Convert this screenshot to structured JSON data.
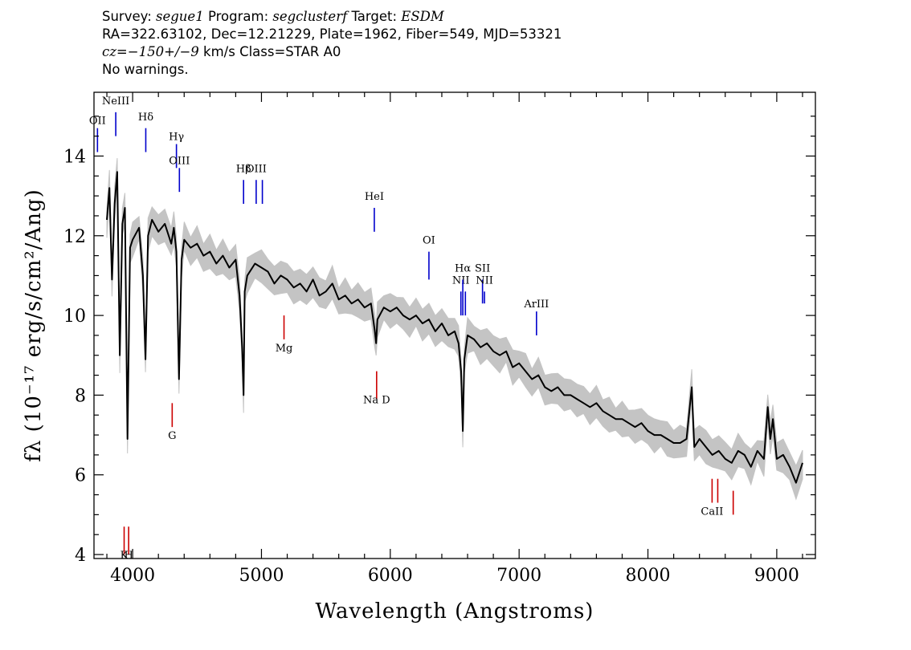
{
  "header": {
    "line1": {
      "survey_label": "Survey:",
      "survey": "segue1",
      "program_label": "Program:",
      "program": "segclusterf",
      "target_label": "Target:",
      "target": "ESDM"
    },
    "line2": "RA=322.63102, Dec=12.21229, Plate=1962, Fiber=549, MJD=53321",
    "line3": {
      "cz": "cz=−150+/−9",
      "rest": " km/s Class=STAR A0"
    },
    "line4": "No warnings."
  },
  "colors": {
    "spectrum": "#000000",
    "error_band": "#c4c4c4",
    "emission_line": "#0000cc",
    "absorption_line": "#cc0000"
  },
  "chart_data": {
    "type": "line",
    "title": "",
    "xlabel": "Wavelength (Angstroms)",
    "ylabel": "fλ (10⁻¹⁷ erg/s/cm²/Ang)",
    "xlim": [
      3700,
      9300
    ],
    "ylim": [
      3.9,
      15.6
    ],
    "x_ticks": [
      4000,
      5000,
      6000,
      7000,
      8000,
      9000
    ],
    "y_ticks": [
      4,
      6,
      8,
      10,
      12,
      14
    ],
    "grid": false,
    "series": [
      {
        "role": "flux",
        "x": [
          3800,
          3820,
          3840,
          3860,
          3880,
          3900,
          3920,
          3940,
          3960,
          3980,
          4000,
          4050,
          4080,
          4100,
          4120,
          4150,
          4200,
          4250,
          4300,
          4320,
          4340,
          4360,
          4380,
          4400,
          4450,
          4500,
          4550,
          4600,
          4650,
          4700,
          4750,
          4800,
          4830,
          4850,
          4861,
          4870,
          4890,
          4950,
          5000,
          5050,
          5100,
          5150,
          5200,
          5250,
          5300,
          5350,
          5400,
          5450,
          5500,
          5550,
          5600,
          5650,
          5700,
          5750,
          5800,
          5850,
          5880,
          5890,
          5900,
          5950,
          6000,
          6050,
          6100,
          6150,
          6200,
          6250,
          6300,
          6350,
          6400,
          6450,
          6500,
          6530,
          6550,
          6563,
          6575,
          6600,
          6650,
          6700,
          6750,
          6800,
          6850,
          6900,
          6950,
          7000,
          7050,
          7100,
          7150,
          7200,
          7250,
          7300,
          7350,
          7400,
          7450,
          7500,
          7550,
          7600,
          7650,
          7700,
          7750,
          7800,
          7850,
          7900,
          7950,
          8000,
          8050,
          8100,
          8150,
          8200,
          8250,
          8300,
          8340,
          8350,
          8360,
          8400,
          8450,
          8500,
          8550,
          8600,
          8650,
          8700,
          8750,
          8800,
          8850,
          8900,
          8930,
          8950,
          8970,
          9000,
          9050,
          9100,
          9150,
          9200
        ],
        "y": [
          12.4,
          13.2,
          10.9,
          12.8,
          13.6,
          9.0,
          12.3,
          12.7,
          6.9,
          11.7,
          11.9,
          12.2,
          11.0,
          8.9,
          12.0,
          12.4,
          12.1,
          12.3,
          11.8,
          12.2,
          11.6,
          8.4,
          11.4,
          11.9,
          11.7,
          11.8,
          11.5,
          11.6,
          11.3,
          11.5,
          11.2,
          11.4,
          10.5,
          9.2,
          8.0,
          10.6,
          11.0,
          11.3,
          11.2,
          11.1,
          10.8,
          11.0,
          10.9,
          10.7,
          10.8,
          10.6,
          10.9,
          10.5,
          10.6,
          10.8,
          10.4,
          10.5,
          10.3,
          10.4,
          10.2,
          10.3,
          9.6,
          9.3,
          9.9,
          10.2,
          10.1,
          10.2,
          10.0,
          9.9,
          10.0,
          9.8,
          9.9,
          9.6,
          9.8,
          9.5,
          9.6,
          9.3,
          8.6,
          7.1,
          8.9,
          9.5,
          9.4,
          9.2,
          9.3,
          9.1,
          9.0,
          9.1,
          8.7,
          8.8,
          8.6,
          8.4,
          8.5,
          8.2,
          8.1,
          8.2,
          8.0,
          8.0,
          7.9,
          7.8,
          7.7,
          7.8,
          7.6,
          7.5,
          7.4,
          7.4,
          7.3,
          7.2,
          7.3,
          7.1,
          7.0,
          7.0,
          6.9,
          6.8,
          6.8,
          6.9,
          8.2,
          7.4,
          6.7,
          6.9,
          6.7,
          6.5,
          6.6,
          6.4,
          6.3,
          6.6,
          6.5,
          6.2,
          6.6,
          6.4,
          7.7,
          6.9,
          7.4,
          6.4,
          6.5,
          6.2,
          5.8,
          6.3
        ]
      }
    ],
    "line_labels": [
      {
        "name": "OII",
        "wavelength": 3727,
        "kind": "emission",
        "tick_y": [
          14.1,
          14.7
        ],
        "label_y": 14.8
      },
      {
        "name": "NeIII",
        "wavelength": 3869,
        "kind": "emission",
        "tick_y": [
          14.5,
          15.1
        ],
        "label_y": 15.3
      },
      {
        "name": "Hδ",
        "wavelength": 4102,
        "kind": "emission",
        "tick_y": [
          14.1,
          14.7
        ],
        "label_y": 14.9
      },
      {
        "name": "Hγ",
        "wavelength": 4340,
        "kind": "emission",
        "tick_y": [
          13.7,
          14.3
        ],
        "label_y": 14.4
      },
      {
        "name": "OIII",
        "wavelength": 4363,
        "kind": "emission",
        "tick_y": [
          13.1,
          13.7
        ],
        "label_y": 13.8
      },
      {
        "name": "Hβ",
        "wavelength": 4861,
        "kind": "emission",
        "tick_y": [
          12.8,
          13.4
        ],
        "label_y": 13.6
      },
      {
        "name": "OIII",
        "wavelength": 4959,
        "kind": "emission",
        "tick_y": [
          12.8,
          13.4
        ],
        "label_y": 13.6
      },
      {
        "name": "OIII",
        "wavelength": 5007,
        "kind": "emission",
        "tick_y": [
          12.8,
          13.4
        ],
        "label_y": null
      },
      {
        "name": "HeI",
        "wavelength": 5876,
        "kind": "emission",
        "tick_y": [
          12.1,
          12.7
        ],
        "label_y": 12.9
      },
      {
        "name": "OI",
        "wavelength": 6300,
        "kind": "emission",
        "tick_y": [
          10.9,
          11.6
        ],
        "label_y": 11.8
      },
      {
        "name": "NII",
        "wavelength": 6548,
        "kind": "emission",
        "tick_y": [
          10.0,
          10.6
        ],
        "label_y": 10.8
      },
      {
        "name": "Hα",
        "wavelength": 6563,
        "kind": "emission",
        "tick_y": [
          10.0,
          10.9
        ],
        "label_y": 11.1
      },
      {
        "name": "NII",
        "wavelength": 6583,
        "kind": "emission",
        "tick_y": [
          10.0,
          10.6
        ],
        "label_y": null
      },
      {
        "name": "SII",
        "wavelength": 6716,
        "kind": "emission",
        "tick_y": [
          10.3,
          10.9
        ],
        "label_y": 11.1
      },
      {
        "name": "NII",
        "wavelength": 6731,
        "kind": "emission",
        "tick_y": [
          10.3,
          10.6
        ],
        "label_y": 10.8
      },
      {
        "name": "ArIII",
        "wavelength": 7135,
        "kind": "emission",
        "tick_y": [
          9.5,
          10.1
        ],
        "label_y": 10.2
      },
      {
        "name": "K",
        "wavelength": 3934,
        "kind": "absorption",
        "tick_y": [
          4.0,
          4.7
        ],
        "label_y": 3.9
      },
      {
        "name": "H",
        "wavelength": 3969,
        "kind": "absorption",
        "tick_y": [
          4.0,
          4.7
        ],
        "label_y": 3.9
      },
      {
        "name": "G",
        "wavelength": 4307,
        "kind": "absorption",
        "tick_y": [
          7.2,
          7.8
        ],
        "label_y": 6.9
      },
      {
        "name": "Mg",
        "wavelength": 5175,
        "kind": "absorption",
        "tick_y": [
          9.4,
          10.0
        ],
        "label_y": 9.1
      },
      {
        "name": "Na D",
        "wavelength": 5894,
        "kind": "absorption",
        "tick_y": [
          7.9,
          8.6
        ],
        "label_y": 7.8
      },
      {
        "name": "CaII",
        "wavelength": 8498,
        "kind": "absorption",
        "tick_y": [
          5.3,
          5.9
        ],
        "label_y": 5.0
      },
      {
        "name": "CaII",
        "wavelength": 8542,
        "kind": "absorption",
        "tick_y": [
          5.3,
          5.9
        ],
        "label_y": null
      },
      {
        "name": "CaII",
        "wavelength": 8662,
        "kind": "absorption",
        "tick_y": [
          5.0,
          5.6
        ],
        "label_y": null
      }
    ]
  }
}
